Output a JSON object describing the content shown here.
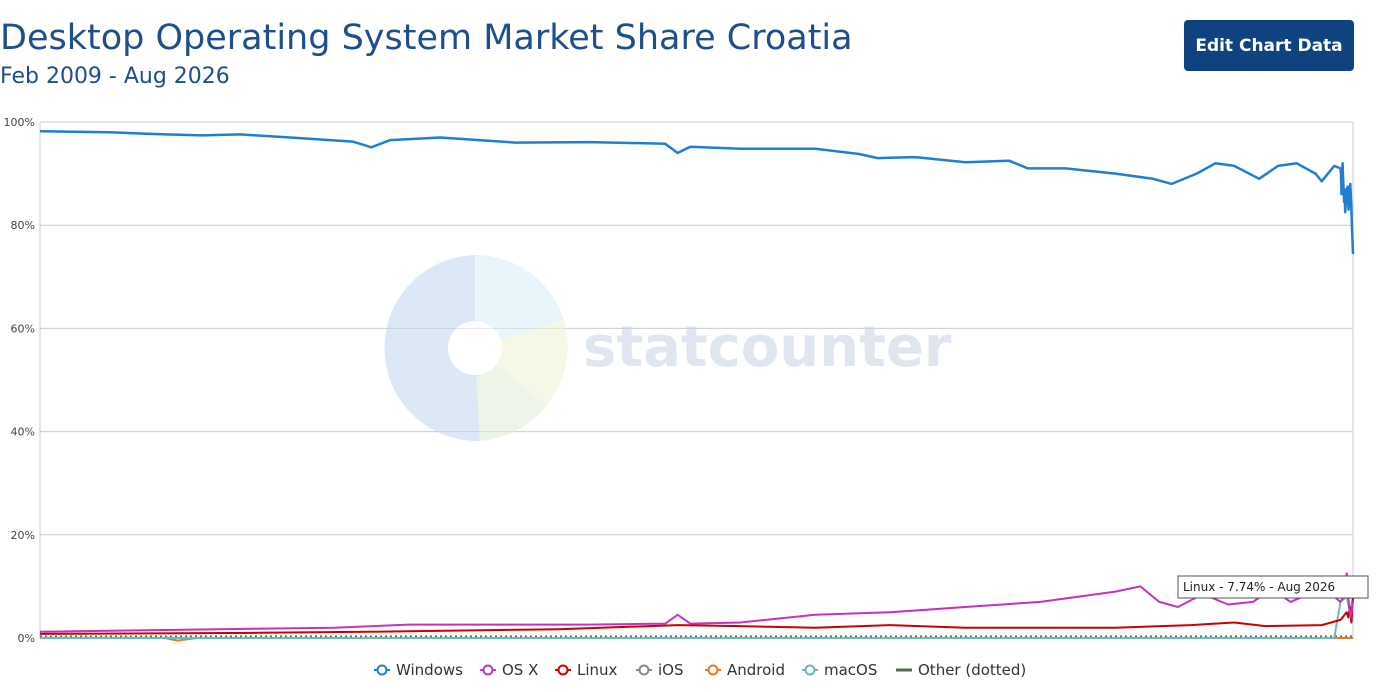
{
  "header": {
    "title": "Desktop Operating System Market Share Croatia",
    "subtitle": "Feb 2009 - Aug 2026",
    "edit_button_label": "Edit Chart Data"
  },
  "watermark": {
    "text": "statcounter"
  },
  "tooltip": {
    "text": "Linux - 7.74% - Aug 2026"
  },
  "chart_data": {
    "type": "line",
    "title": "Desktop Operating System Market Share Croatia",
    "subtitle": "Feb 2009 - Aug 2026",
    "x_range": [
      "2009-02",
      "2026-08"
    ],
    "ylim": [
      0,
      100
    ],
    "y_ticks": [
      "0%",
      "20%",
      "40%",
      "60%",
      "80%",
      "100%"
    ],
    "grid": true,
    "legend_position": "bottom",
    "series": [
      {
        "name": "Windows",
        "color": "#1f7fd1",
        "marker": "circle-open",
        "points": [
          [
            "2009-02",
            98.2
          ],
          [
            "2010-01",
            98.0
          ],
          [
            "2010-10",
            97.6
          ],
          [
            "2011-04",
            97.4
          ],
          [
            "2011-10",
            97.6
          ],
          [
            "2012-06",
            97.0
          ],
          [
            "2013-04",
            96.2
          ],
          [
            "2013-07",
            95.1
          ],
          [
            "2013-10",
            96.5
          ],
          [
            "2014-06",
            97.0
          ],
          [
            "2015-06",
            96.0
          ],
          [
            "2016-06",
            96.1
          ],
          [
            "2017-06",
            95.8
          ],
          [
            "2017-08",
            94.0
          ],
          [
            "2017-10",
            95.2
          ],
          [
            "2018-06",
            94.8
          ],
          [
            "2019-06",
            94.8
          ],
          [
            "2020-01",
            93.8
          ],
          [
            "2020-04",
            93.0
          ],
          [
            "2020-10",
            93.2
          ],
          [
            "2021-06",
            92.2
          ],
          [
            "2022-01",
            92.5
          ],
          [
            "2022-04",
            91.0
          ],
          [
            "2022-10",
            91.0
          ],
          [
            "2023-06",
            90.0
          ],
          [
            "2023-12",
            89.0
          ],
          [
            "2024-03",
            88.0
          ],
          [
            "2024-07",
            90.0
          ],
          [
            "2024-10",
            92.0
          ],
          [
            "2025-01",
            91.5
          ],
          [
            "2025-05",
            89.0
          ],
          [
            "2025-08",
            91.5
          ],
          [
            "2025-11",
            92.0
          ],
          [
            "2026-02",
            90.0
          ],
          [
            "2026-03",
            88.5
          ],
          [
            "2026-05",
            91.5
          ],
          [
            "2026-06",
            91.0
          ],
          [
            "2026-07",
            90.0
          ],
          [
            "2026-07",
            86.0
          ],
          [
            "2026-07",
            90.0
          ],
          [
            "2026-07",
            92.0
          ],
          [
            "2026-07",
            89.0
          ],
          [
            "2026-07",
            87.0
          ],
          [
            "2026-07",
            84.5
          ],
          [
            "2026-07",
            86.0
          ],
          [
            "2026-07",
            82.5
          ],
          [
            "2026-07",
            84.0
          ],
          [
            "2026-07",
            87.0
          ],
          [
            "2026-07",
            85.0
          ],
          [
            "2026-08",
            87.5
          ],
          [
            "2026-08",
            83.0
          ],
          [
            "2026-08",
            84.0
          ],
          [
            "2026-08",
            88.0
          ],
          [
            "2026-08",
            84.0
          ],
          [
            "2026-08",
            79.0
          ],
          [
            "2026-08",
            74.4
          ]
        ]
      },
      {
        "name": "OS X",
        "color": "#c233c2",
        "marker": "circle-open",
        "points": [
          [
            "2009-02",
            1.2
          ],
          [
            "2011-01",
            1.6
          ],
          [
            "2013-01",
            2.0
          ],
          [
            "2014-01",
            2.6
          ],
          [
            "2016-06",
            2.6
          ],
          [
            "2017-06",
            2.8
          ],
          [
            "2017-08",
            4.5
          ],
          [
            "2017-10",
            2.8
          ],
          [
            "2018-06",
            3.0
          ],
          [
            "2019-06",
            4.5
          ],
          [
            "2020-06",
            5.0
          ],
          [
            "2021-06",
            6.0
          ],
          [
            "2022-06",
            7.0
          ],
          [
            "2022-12",
            8.0
          ],
          [
            "2023-06",
            9.0
          ],
          [
            "2023-10",
            10.0
          ],
          [
            "2024-01",
            7.0
          ],
          [
            "2024-04",
            6.0
          ],
          [
            "2024-08",
            8.5
          ],
          [
            "2024-12",
            6.5
          ],
          [
            "2025-04",
            7.0
          ],
          [
            "2025-07",
            9.5
          ],
          [
            "2025-10",
            7.0
          ],
          [
            "2026-01",
            8.5
          ],
          [
            "2026-04",
            11.0
          ],
          [
            "2026-05",
            8.0
          ],
          [
            "2026-06",
            7.0
          ],
          [
            "2026-07",
            8.0
          ],
          [
            "2026-07",
            12.5
          ],
          [
            "2026-08",
            9.0
          ],
          [
            "2026-08",
            6.0
          ],
          [
            "2026-08",
            4.0
          ],
          [
            "2026-08",
            5.0
          ],
          [
            "2026-08",
            7.2
          ]
        ]
      },
      {
        "name": "Linux",
        "color": "#cc0000",
        "marker": "circle-open",
        "points": [
          [
            "2009-02",
            0.8
          ],
          [
            "2012-01",
            1.0
          ],
          [
            "2014-01",
            1.3
          ],
          [
            "2016-01",
            1.7
          ],
          [
            "2017-08",
            2.5
          ],
          [
            "2018-06",
            2.3
          ],
          [
            "2019-06",
            2.0
          ],
          [
            "2020-06",
            2.5
          ],
          [
            "2021-06",
            2.0
          ],
          [
            "2022-06",
            2.0
          ],
          [
            "2023-06",
            2.0
          ],
          [
            "2024-06",
            2.5
          ],
          [
            "2025-01",
            3.0
          ],
          [
            "2025-06",
            2.3
          ],
          [
            "2026-03",
            2.5
          ],
          [
            "2026-06",
            3.5
          ],
          [
            "2026-07",
            5.0
          ],
          [
            "2026-08",
            4.0
          ],
          [
            "2026-08",
            6.0
          ],
          [
            "2026-08",
            3.0
          ],
          [
            "2026-08",
            7.74
          ]
        ]
      },
      {
        "name": "iOS",
        "color": "#888888",
        "marker": "circle-open",
        "points": [
          [
            "2009-02",
            0.0
          ],
          [
            "2026-08",
            0.0
          ]
        ]
      },
      {
        "name": "Android",
        "color": "#ee7722",
        "marker": "circle-open",
        "points": [
          [
            "2009-02",
            0.0
          ],
          [
            "2010-10",
            0.0
          ],
          [
            "2010-12",
            -0.5
          ],
          [
            "2011-03",
            0.0
          ],
          [
            "2026-08",
            0.0
          ]
        ]
      },
      {
        "name": "macOS",
        "color": "#66bbbb",
        "marker": "circle-open",
        "points": [
          [
            "2009-02",
            0.0
          ],
          [
            "2026-05",
            0.0
          ],
          [
            "2026-06",
            7.0
          ],
          [
            "2026-07",
            8.0
          ],
          [
            "2026-08",
            5.0
          ],
          [
            "2026-08",
            8.0
          ]
        ]
      },
      {
        "name": "Other (dotted)",
        "color": "#556655",
        "marker": "line",
        "points": [
          [
            "2009-02",
            0.3
          ],
          [
            "2026-08",
            0.3
          ]
        ]
      }
    ]
  }
}
